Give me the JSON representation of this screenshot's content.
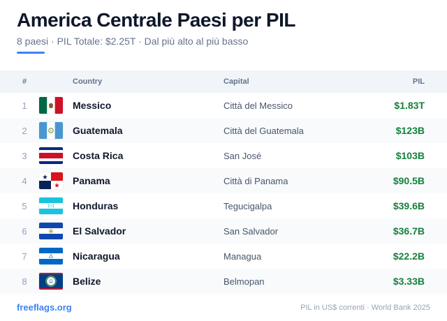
{
  "header": {
    "title": "America Centrale Paesi per PIL",
    "subtitle": "8 paesi · PIL Totale: $2.25T · Dal più alto al più basso"
  },
  "table": {
    "columns": {
      "rank": "#",
      "country": "Country",
      "capital": "Capital",
      "gdp": "PIL"
    },
    "rows": [
      {
        "rank": "1",
        "country": "Messico",
        "capital": "Città del Messico",
        "gdp": "$1.83T",
        "flag": "mexico-flag-icon"
      },
      {
        "rank": "2",
        "country": "Guatemala",
        "capital": "Città del Guatemala",
        "gdp": "$123B",
        "flag": "guatemala-flag-icon"
      },
      {
        "rank": "3",
        "country": "Costa Rica",
        "capital": "San José",
        "gdp": "$103B",
        "flag": "costa-rica-flag-icon"
      },
      {
        "rank": "4",
        "country": "Panama",
        "capital": "Città di Panama",
        "gdp": "$90.5B",
        "flag": "panama-flag-icon"
      },
      {
        "rank": "5",
        "country": "Honduras",
        "capital": "Tegucigalpa",
        "gdp": "$39.6B",
        "flag": "honduras-flag-icon"
      },
      {
        "rank": "6",
        "country": "El Salvador",
        "capital": "San Salvador",
        "gdp": "$36.7B",
        "flag": "el-salvador-flag-icon"
      },
      {
        "rank": "7",
        "country": "Nicaragua",
        "capital": "Managua",
        "gdp": "$22.2B",
        "flag": "nicaragua-flag-icon"
      },
      {
        "rank": "8",
        "country": "Belize",
        "capital": "Belmopan",
        "gdp": "$3.33B",
        "flag": "belize-flag-icon"
      }
    ]
  },
  "footer": {
    "brand": "freeflags.org",
    "source": "PIL in US$ correnti · World Bank 2025"
  },
  "colors": {
    "accent": "#3b82f6",
    "gdp_text": "#15803d",
    "header_bg": "#f1f5f9",
    "alt_row_bg": "#f8fafc"
  }
}
